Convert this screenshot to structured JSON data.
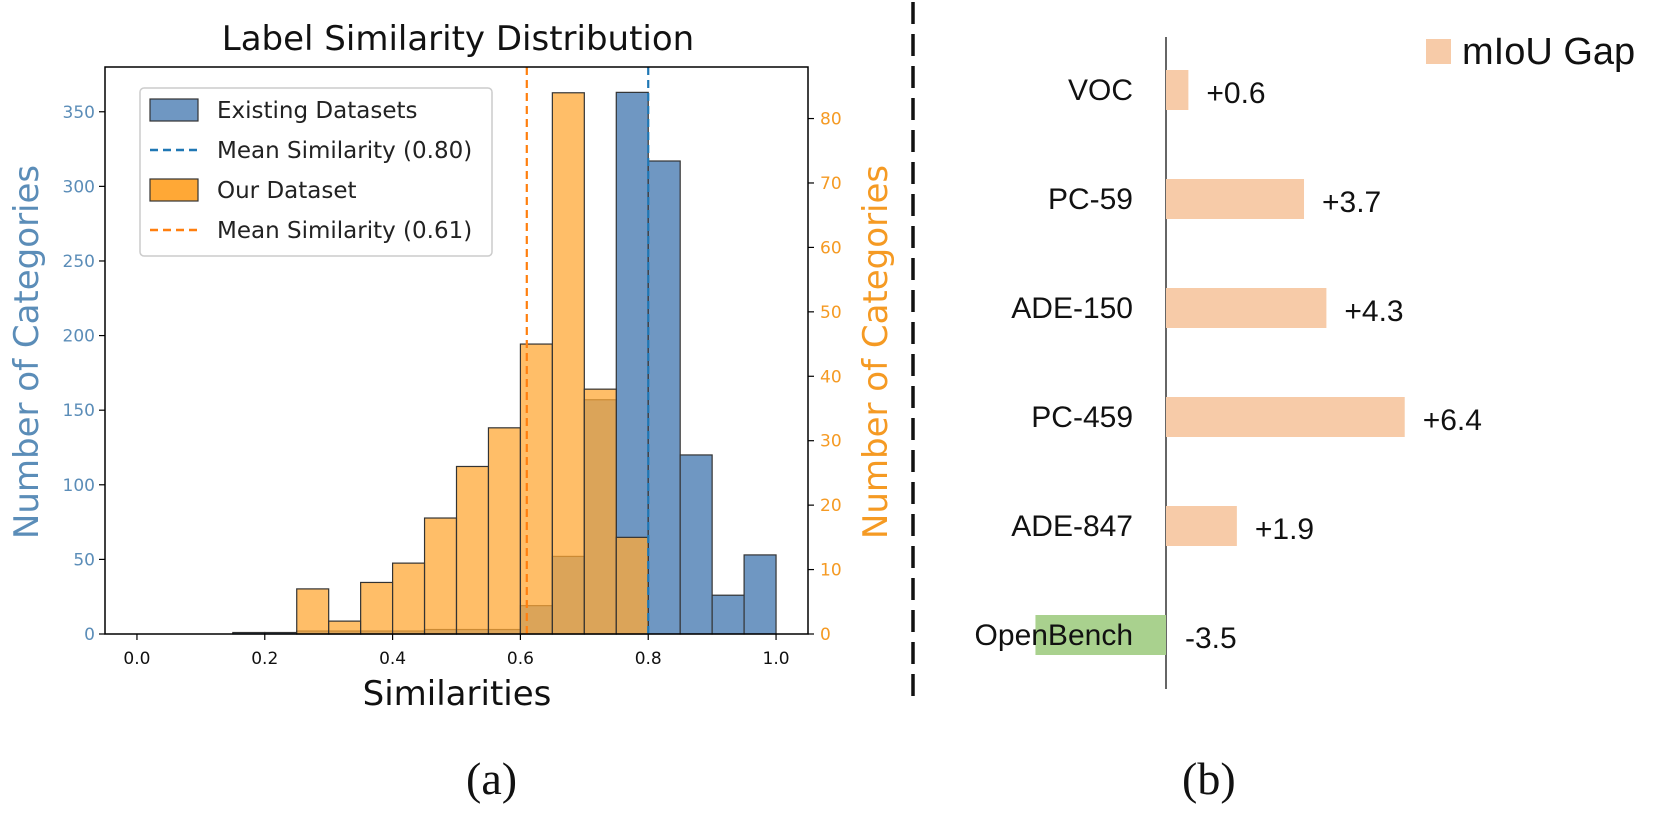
{
  "chart_data": [
    {
      "type": "bar",
      "panel_caption": "(a)",
      "title": "Label Similarity Distribution",
      "xlabel": "Similarities",
      "ylabel_left": "Number of Categories",
      "ylabel_right": "Number of Categories",
      "xlim": [
        -0.05,
        1.05
      ],
      "ylim_left": [
        0,
        380
      ],
      "ylim_right": [
        0,
        88
      ],
      "x_ticks": [
        0.0,
        0.2,
        0.4,
        0.6,
        0.8,
        1.0
      ],
      "x_tick_labels": [
        "0.0",
        "0.2",
        "0.4",
        "0.6",
        "0.8",
        "1.0"
      ],
      "y_ticks_left": [
        0,
        50,
        100,
        150,
        200,
        250,
        300,
        350
      ],
      "y_tick_labels_left": [
        "0",
        "50",
        "100",
        "150",
        "200",
        "250",
        "300",
        "350"
      ],
      "y_ticks_right": [
        0,
        10,
        20,
        30,
        40,
        50,
        60,
        70,
        80
      ],
      "y_tick_labels_right": [
        "0",
        "10",
        "20",
        "30",
        "40",
        "50",
        "60",
        "70",
        "80"
      ],
      "series": [
        {
          "name": "Existing Datasets",
          "axis": "left",
          "color": "#6f97c2",
          "bin_width": 0.05,
          "bin_starts": [
            0.15,
            0.2,
            0.25,
            0.3,
            0.35,
            0.4,
            0.45,
            0.5,
            0.55,
            0.6,
            0.65,
            0.7,
            0.75,
            0.8,
            0.85,
            0.9,
            0.95
          ],
          "values": [
            1,
            1,
            2,
            2,
            2,
            2,
            3,
            3,
            3,
            19,
            52,
            157,
            363,
            317,
            120,
            26,
            53
          ]
        },
        {
          "name": "Our Dataset",
          "axis": "right",
          "color": "#ffa836",
          "bin_width": 0.05,
          "bin_starts": [
            0.25,
            0.3,
            0.35,
            0.4,
            0.45,
            0.5,
            0.55,
            0.6,
            0.65,
            0.7,
            0.75
          ],
          "values": [
            7,
            2,
            8,
            11,
            18,
            26,
            32,
            45,
            84,
            38,
            15
          ]
        }
      ],
      "mean_lines": [
        {
          "name": "Mean Similarity (0.80)",
          "value": 0.8,
          "color": "#1f77b4"
        },
        {
          "name": "Mean Similarity (0.61)",
          "value": 0.61,
          "color": "#ff7f0e"
        }
      ],
      "legend_position": "top-left",
      "legend": [
        {
          "label": "Existing Datasets",
          "kind": "patch",
          "color": "#6f97c2"
        },
        {
          "label": "Mean Similarity (0.80)",
          "kind": "line",
          "color": "#1f77b4"
        },
        {
          "label": "Our Dataset",
          "kind": "patch",
          "color": "#ffa836"
        },
        {
          "label": "Mean Similarity (0.61)",
          "kind": "line",
          "color": "#ff7f0e"
        }
      ]
    },
    {
      "type": "bar",
      "orientation": "horizontal",
      "panel_caption": "(b)",
      "legend_label": "mIoU Gap",
      "legend_color": "#f7cba8",
      "legend_position": "top-right",
      "categories": [
        "VOC",
        "PC-59",
        "ADE-150",
        "PC-459",
        "ADE-847",
        "OpenBench"
      ],
      "values": [
        0.6,
        3.7,
        4.3,
        6.4,
        1.9,
        -3.5
      ],
      "value_labels": [
        "+0.6",
        "+3.7",
        "+4.3",
        "+6.4",
        "+1.9",
        "-3.5"
      ],
      "colors": [
        "#f7cba8",
        "#f7cba8",
        "#f7cba8",
        "#f7cba8",
        "#f7cba8",
        "#a9d18e"
      ]
    }
  ]
}
